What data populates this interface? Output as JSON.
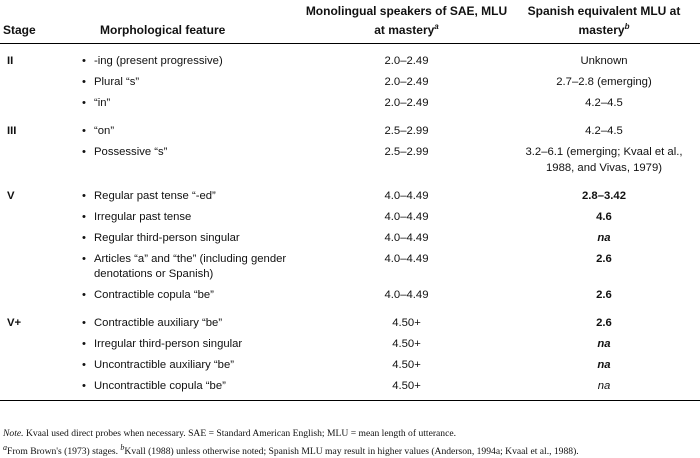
{
  "header": {
    "columns": [
      {
        "text": "Stage"
      },
      {
        "text": "Morphological feature"
      },
      {
        "text": "Monolingual speakers of SAE, MLU at mastery",
        "note": "a"
      },
      {
        "text": "Spanish equivalent MLU at mastery",
        "note": "b"
      }
    ]
  },
  "table": {
    "groups": [
      {
        "stage": "II",
        "rows": [
          [
            "-ing (present progressive)",
            "2.0–2.49",
            "Unknown"
          ],
          [
            "Plural “s”",
            "2.0–2.49",
            "2.7–2.8 (emerging)"
          ],
          [
            "“in”",
            "2.0–2.49",
            "4.2–4.5"
          ]
        ]
      },
      {
        "stage": "III",
        "rows": [
          [
            "“on”",
            "2.5–2.99",
            "4.2–4.5"
          ],
          [
            "Possessive “s”",
            "2.5–2.99",
            "3.2–6.1 (emerging; Kvaal et al., 1988, and Vivas, 1979)"
          ]
        ]
      },
      {
        "stage": "V",
        "rows": [
          [
            "Regular past tense “-ed”",
            "4.0–4.49",
            "2.8–3.42"
          ],
          [
            "Irregular past tense",
            "4.0–4.49",
            "4.6"
          ],
          [
            "Regular third-person singular",
            "4.0–4.49",
            "na"
          ],
          [
            "Articles “a” and “the” (including gender denotations or Spanish)",
            "4.0–4.49",
            "2.6"
          ],
          [
            "Contractible copula “be”",
            "4.0–4.49",
            "2.6"
          ]
        ]
      },
      {
        "stage": "V+",
        "rows": [
          [
            "Contractible auxiliary “be”",
            "4.50+",
            "2.6"
          ],
          [
            "Irregular third-person singular",
            "4.50+",
            "na"
          ],
          [
            "Uncontractible auxiliary “be”",
            "4.50+",
            "na"
          ],
          [
            "Uncontractible copula “be”",
            "4.50+",
            "na"
          ]
        ]
      }
    ]
  },
  "footnotes": {
    "note": {
      "label": "Note.",
      "text": "Kvaal used direct probes when necessary. SAE = Standard American English; MLU = mean length of utterance."
    },
    "sources": [
      {
        "mark": "a",
        "text": "From Brown's (1973) stages."
      },
      {
        "mark": "b",
        "text": "Kvall (1988) unless otherwise noted; Spanish MLU may result in higher values (Anderson, 1994a; Kvaal et al., 1988)."
      }
    ]
  }
}
